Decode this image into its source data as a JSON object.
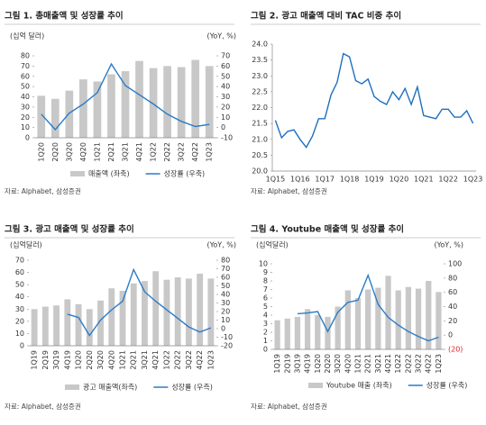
{
  "chart_data": [
    {
      "type": "combo",
      "title": "그림 1. 총매출액 및 성장률 추이",
      "y_label": "(십억 달러)",
      "y2_label": "(YoY, %)",
      "categories": [
        "1Q20",
        "2Q20",
        "3Q20",
        "4Q20",
        "1Q21",
        "2Q21",
        "3Q21",
        "4Q21",
        "1Q22",
        "2Q22",
        "3Q22",
        "4Q22",
        "1Q23"
      ],
      "series": [
        {
          "name": "매출액 (좌축)",
          "color": "#c8c8c8",
          "type": "bar",
          "axis": "y",
          "values": [
            41,
            38,
            46,
            57,
            55,
            62,
            65,
            75,
            68,
            70,
            69,
            76,
            70
          ]
        },
        {
          "name": "성장률 (우축)",
          "color": "#2a7bc8",
          "type": "line",
          "axis": "y2",
          "values": [
            13,
            -2,
            14,
            23,
            34,
            62,
            41,
            32,
            23,
            13,
            6,
            1,
            3
          ]
        }
      ],
      "ylim": [
        0,
        80
      ],
      "yticks": [
        0,
        10,
        20,
        30,
        40,
        50,
        60,
        70,
        80
      ],
      "y2lim": [
        -10,
        70
      ],
      "y2ticks": [
        -10,
        0,
        10,
        20,
        30,
        40,
        50,
        60,
        70
      ],
      "legend": "bottom",
      "source": "자료: Alphabet, 삼성증권"
    },
    {
      "type": "line",
      "title": "그림 2. 광고 매출액 대비 TAC 비중 추이",
      "categories": [
        "1Q15",
        null,
        null,
        null,
        "1Q16",
        null,
        null,
        null,
        "1Q17",
        null,
        null,
        null,
        "1Q18",
        null,
        null,
        null,
        "1Q19",
        null,
        null,
        null,
        "1Q20",
        null,
        null,
        null,
        "1Q21",
        null,
        null,
        null,
        "1Q22",
        null,
        null,
        null,
        "1Q23"
      ],
      "series": [
        {
          "name": null,
          "color": "#1f6fbf",
          "type": "line",
          "axis": "y",
          "values": [
            21.6,
            21.05,
            21.25,
            21.3,
            21.0,
            20.75,
            21.1,
            21.65,
            21.65,
            22.4,
            22.8,
            23.7,
            23.6,
            22.85,
            22.75,
            22.9,
            22.35,
            22.2,
            22.1,
            22.5,
            22.25,
            22.6,
            22.1,
            22.65,
            21.75,
            21.7,
            21.65,
            21.95,
            21.95,
            21.7,
            21.7,
            21.9,
            21.5
          ]
        }
      ],
      "ylim": [
        20,
        24
      ],
      "yticks": [
        {
          "value": 20,
          "label": "20.0"
        },
        20.5,
        {
          "value": 21,
          "label": "21.0"
        },
        21.5,
        {
          "value": 22,
          "label": "22.0"
        },
        22.5,
        {
          "value": 23,
          "label": "23.0"
        },
        23.5,
        {
          "value": 24,
          "label": "24.0"
        }
      ],
      "source": "자료: Alphabet, 삼성증권"
    },
    {
      "type": "combo",
      "title": "그림 3. 광고 매출액 및 성장률 추이",
      "y_label": "(십억달러)",
      "y2_label": "(YoY, %)",
      "categories": [
        "1Q19",
        "2Q19",
        "3Q19",
        "4Q19",
        "1Q20",
        "2Q20",
        "3Q20",
        "4Q20",
        "1Q21",
        "2Q21",
        "3Q21",
        "4Q21",
        "1Q22",
        "2Q22",
        "3Q22",
        "4Q22",
        "1Q23"
      ],
      "series": [
        {
          "name": "광고 매출액(좌측)",
          "color": "#c8c8c8",
          "type": "bar",
          "axis": "y",
          "values": [
            30,
            32,
            33,
            38,
            34,
            30,
            37,
            47,
            45,
            51,
            53,
            61,
            54,
            56,
            55,
            59,
            55
          ]
        },
        {
          "name": "성장률 (우측)",
          "color": "#2a7bc8",
          "type": "line",
          "axis": "y2",
          "values": [
            null,
            null,
            null,
            17,
            13,
            -8,
            10,
            22,
            32,
            69,
            43,
            32,
            22,
            12,
            2,
            -4,
            1
          ]
        }
      ],
      "ylim": [
        0,
        70
      ],
      "yticks": [
        0,
        10,
        20,
        30,
        40,
        50,
        60,
        70
      ],
      "y2lim": [
        -20,
        80
      ],
      "y2ticks": [
        -20,
        -10,
        0,
        10,
        20,
        30,
        40,
        50,
        60,
        70,
        80
      ],
      "legend": "bottom",
      "source": "자료: Alphabet, 삼성증권"
    },
    {
      "type": "combo",
      "title": "그림 4. Youtube 매출액 및 성장률 추이",
      "y_label": "(십억달러)",
      "y2_label": "(YoY, %)",
      "categories": [
        "1Q19",
        "2Q19",
        "3Q19",
        "4Q19",
        "1Q20",
        "2Q20",
        "3Q20",
        "4Q20",
        "1Q21",
        "2Q21",
        "3Q21",
        "4Q21",
        "1Q22",
        "2Q22",
        "3Q22",
        "4Q22",
        "1Q23"
      ],
      "series": [
        {
          "name": "Youtube 매출 (좌축)",
          "color": "#c8c8c8",
          "type": "bar",
          "axis": "y",
          "values": [
            3.4,
            3.6,
            3.8,
            4.7,
            4.0,
            3.8,
            5.0,
            6.9,
            6.0,
            7.0,
            7.2,
            8.6,
            6.9,
            7.3,
            7.1,
            8.0,
            6.7
          ]
        },
        {
          "name": "성장률 (우축)",
          "color": "#2a7bc8",
          "type": "line",
          "axis": "y2",
          "values": [
            null,
            null,
            30,
            31,
            33,
            5,
            32,
            46,
            49,
            84,
            43,
            25,
            14,
            5,
            -2,
            -8,
            -3
          ]
        }
      ],
      "ylim": [
        0,
        10
      ],
      "yticks": [
        0,
        1,
        2,
        3,
        4,
        5,
        6,
        7,
        8,
        9,
        10
      ],
      "y2lim": [
        -20,
        100
      ],
      "y2ticks": [
        {
          "value": -20,
          "label": "(20)"
        },
        0,
        20,
        40,
        60,
        80,
        100
      ],
      "negative_tick_color": "#e02020",
      "legend": "bottom",
      "source": "자료: Alphabet, 삼성증권"
    }
  ]
}
